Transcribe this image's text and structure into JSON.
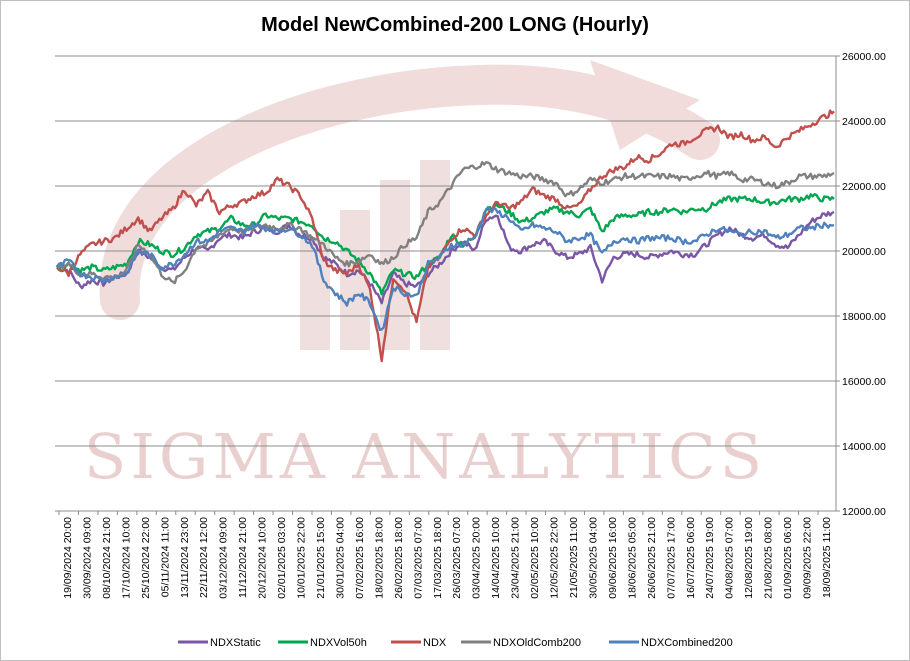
{
  "chart_data": {
    "type": "line",
    "title": "Model NewCombined-200 LONG (Hourly)",
    "watermark": "SIGMA ANALYTICS",
    "ylim": [
      12000,
      26000
    ],
    "y_ticks": [
      "12000.00",
      "14000.00",
      "16000.00",
      "18000.00",
      "20000.00",
      "22000.00",
      "24000.00",
      "26000.00"
    ],
    "x_tick_labels": [
      "19/09/2024 20:00",
      "30/09/2024 09:00",
      "08/10/2024 21:00",
      "17/10/2024 10:00",
      "25/10/2024 22:00",
      "05/11/2024 11:00",
      "13/11/2024 23:00",
      "22/11/2024 12:00",
      "03/12/2024 09:00",
      "11/12/2024 21:00",
      "20/12/2024 10:00",
      "02/01/2025 03:00",
      "10/01/2025 22:00",
      "21/01/2025 15:00",
      "30/01/2025 04:00",
      "07/02/2025 16:00",
      "18/02/2025 18:00",
      "26/02/2025 18:00",
      "07/03/2025 07:00",
      "17/03/2025 18:00",
      "26/03/2025 07:00",
      "03/04/2025 20:00",
      "14/04/2025 10:00",
      "23/04/2025 21:00",
      "02/05/2025 10:00",
      "12/05/2025 22:00",
      "21/05/2025 11:00",
      "30/05/2025 04:00",
      "09/06/2025 16:00",
      "18/06/2025 05:00",
      "26/06/2025 21:00",
      "07/07/2025 17:00",
      "16/07/2025 06:00",
      "24/07/2025 19:00",
      "04/08/2025 07:00",
      "12/08/2025 19:00",
      "21/08/2025 08:00",
      "01/09/2025 06:00",
      "09/09/2025 22:00",
      "18/09/2025 11:00"
    ],
    "grid": "horizontal",
    "legend_position": "bottom",
    "series": [
      {
        "name": "NDXStatic",
        "color": "#7a56a6",
        "values": [
          19500,
          19400,
          18900,
          19100,
          19000,
          19200,
          19300,
          20000,
          19800,
          19500,
          19400,
          19800,
          20100,
          20000,
          20400,
          20500,
          20400,
          20600,
          20700,
          20600,
          20800,
          20500,
          20400,
          19800,
          19600,
          19300,
          19400,
          19000,
          18400,
          19300,
          19000,
          18900,
          19300,
          19600,
          20000,
          20300,
          20000,
          21000,
          21100,
          20100,
          20000,
          20200,
          20300,
          20000,
          19800,
          19900,
          20100,
          19100,
          19800,
          19900,
          19900,
          19800,
          19900,
          20000,
          19900,
          19900,
          20200,
          20500,
          20700,
          20500,
          20400,
          20500,
          20200,
          20100,
          20500,
          20900,
          21100,
          21200
        ]
      },
      {
        "name": "NDXVol50h",
        "color": "#00a650",
        "values": [
          19500,
          19600,
          19400,
          19500,
          19400,
          19500,
          19600,
          20300,
          20200,
          20000,
          19900,
          20100,
          20500,
          20600,
          20700,
          21000,
          20800,
          20800,
          21100,
          21000,
          21000,
          20900,
          20800,
          20400,
          20300,
          20000,
          19700,
          19300,
          18700,
          19400,
          19300,
          19200,
          19600,
          19800,
          20500,
          20200,
          20400,
          21300,
          21400,
          21200,
          20900,
          21000,
          21200,
          21300,
          21200,
          21100,
          21300,
          20600,
          21000,
          21100,
          21100,
          21200,
          21200,
          21300,
          21200,
          21300,
          21300,
          21500,
          21600,
          21600,
          21600,
          21500,
          21500,
          21600,
          21600,
          21700,
          21600,
          21600
        ]
      },
      {
        "name": "NDX",
        "color": "#c0504d",
        "values": [
          19500,
          19300,
          19900,
          20200,
          20300,
          20400,
          20700,
          21000,
          20600,
          21000,
          21300,
          21900,
          21400,
          21800,
          21200,
          21400,
          21500,
          21700,
          21800,
          22200,
          22000,
          21700,
          21000,
          19700,
          19400,
          19300,
          19600,
          18800,
          16700,
          19200,
          18800,
          17800,
          19500,
          19800,
          20400,
          20700,
          20500,
          21100,
          21500,
          21300,
          21500,
          21900,
          21700,
          21600,
          21300,
          21400,
          21900,
          22300,
          22500,
          22600,
          22900,
          22800,
          23000,
          23300,
          23300,
          23500,
          23700,
          23800,
          23500,
          23600,
          23400,
          23500,
          23200,
          23500,
          23700,
          23900,
          24100,
          24300
        ]
      },
      {
        "name": "NDXOldComb200",
        "color": "#808080",
        "values": [
          19500,
          19600,
          19300,
          19300,
          19200,
          19200,
          19400,
          20200,
          19900,
          19300,
          19000,
          19400,
          20100,
          20200,
          20500,
          20700,
          20600,
          20700,
          20800,
          20700,
          20800,
          20700,
          20400,
          20200,
          19800,
          19600,
          19700,
          19900,
          19600,
          19800,
          20200,
          20400,
          21200,
          21500,
          22000,
          22500,
          22600,
          22700,
          22500,
          22400,
          22300,
          22300,
          22200,
          22100,
          21700,
          21900,
          22200,
          22100,
          22200,
          22300,
          22300,
          22300,
          22300,
          22300,
          22200,
          22300,
          22400,
          22300,
          22400,
          22200,
          22200,
          22100,
          22000,
          22100,
          22300,
          22300,
          22300,
          22400
        ]
      },
      {
        "name": "NDXCombined200",
        "color": "#4f81bd",
        "values": [
          19500,
          19700,
          19300,
          19200,
          19100,
          19200,
          19300,
          20000,
          19900,
          19500,
          19600,
          19900,
          20300,
          20300,
          20600,
          20700,
          20600,
          20800,
          20700,
          20600,
          20700,
          20500,
          20200,
          19100,
          18700,
          18400,
          18700,
          18400,
          17500,
          18900,
          18700,
          18600,
          19600,
          19800,
          20200,
          20200,
          20400,
          21300,
          21200,
          21000,
          20600,
          20800,
          20700,
          20600,
          20300,
          20400,
          20500,
          19900,
          20300,
          20400,
          20300,
          20400,
          20400,
          20400,
          20300,
          20300,
          20500,
          20700,
          20600,
          20500,
          20600,
          20600,
          20400,
          20500,
          20700,
          20700,
          20800,
          20800
        ]
      }
    ]
  }
}
